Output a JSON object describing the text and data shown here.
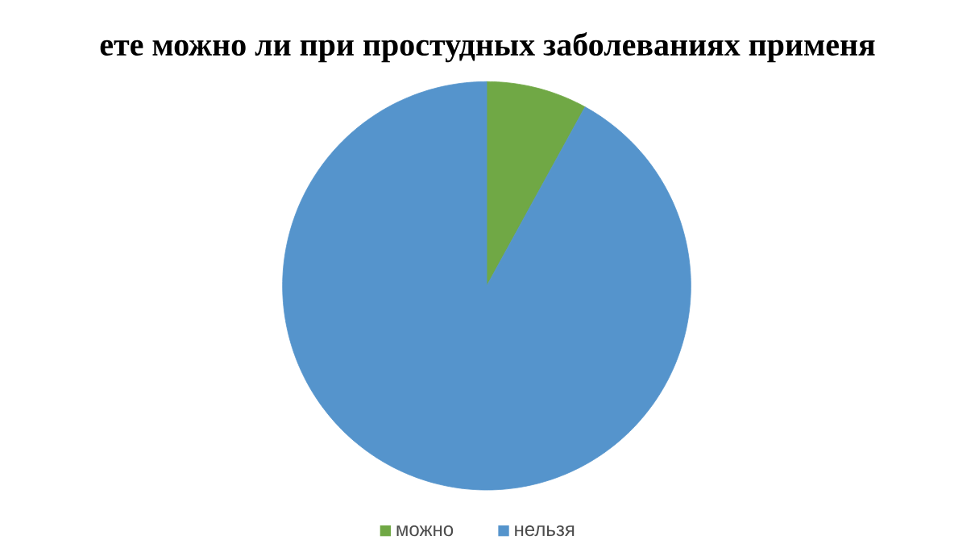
{
  "chart_data": {
    "type": "pie",
    "title": "ете можно ли при простудных заболеваниях применя",
    "categories": [
      "можно",
      "нельзя"
    ],
    "values": [
      8,
      92
    ],
    "colors": [
      "#70a845",
      "#5594cc"
    ],
    "legend": "bottom"
  }
}
